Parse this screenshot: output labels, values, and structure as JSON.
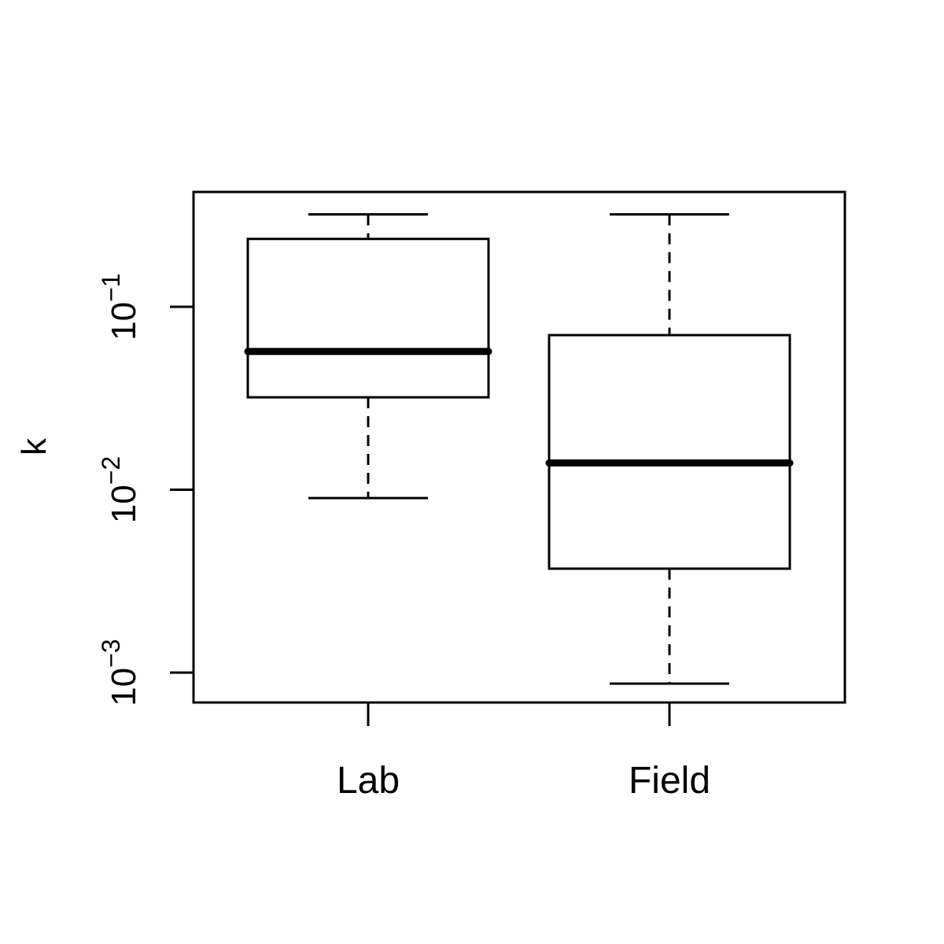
{
  "chart_data": {
    "type": "box",
    "title": "",
    "xlabel": "",
    "ylabel": "k",
    "y_scale": "log10",
    "ylim": [
      0.0007,
      0.36
    ],
    "grid": false,
    "legend": null,
    "categories": [
      "Lab",
      "Field"
    ],
    "y_ticks": [
      {
        "value": 0.001,
        "base": "10",
        "exponent": "−3"
      },
      {
        "value": 0.01,
        "base": "10",
        "exponent": "−2"
      },
      {
        "value": 0.1,
        "base": "10",
        "exponent": "−1"
      }
    ],
    "boxes": [
      {
        "name": "Lab",
        "whisker_low": 0.009,
        "q1": 0.032,
        "median": 0.057,
        "q3": 0.235,
        "whisker_high": 0.32
      },
      {
        "name": "Field",
        "whisker_low": 0.00087,
        "q1": 0.0037,
        "median": 0.014,
        "q3": 0.07,
        "whisker_high": 0.32
      }
    ],
    "colors": {
      "stroke": "#000000",
      "background": "#ffffff"
    }
  }
}
